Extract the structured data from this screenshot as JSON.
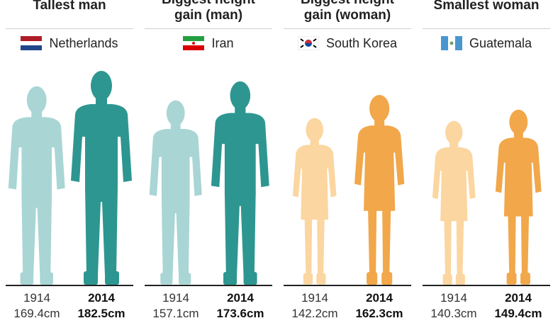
{
  "chart_data": {
    "type": "pictogram",
    "colors": {
      "man_1914": "#a9d5d5",
      "man_2014": "#2e9690",
      "woman_1914": "#fbd6a0",
      "woman_2014": "#f1a74a"
    },
    "panels": [
      {
        "title_lines": [
          "Tallest man"
        ],
        "country": "Netherlands",
        "flag": "netherlands-flag",
        "figure": "man",
        "values": [
          {
            "year": "1914",
            "height": "169.4cm",
            "value": 169.4
          },
          {
            "year": "2014",
            "height": "182.5cm",
            "value": 182.5
          }
        ]
      },
      {
        "title_lines": [
          "Biggest height",
          "gain (man)"
        ],
        "country": "Iran",
        "flag": "iran-flag",
        "figure": "man",
        "values": [
          {
            "year": "1914",
            "height": "157.1cm",
            "value": 157.1
          },
          {
            "year": "2014",
            "height": "173.6cm",
            "value": 173.6
          }
        ]
      },
      {
        "title_lines": [
          "Biggest height",
          "gain (woman)"
        ],
        "country": "South Korea",
        "flag": "south-korea-flag",
        "figure": "woman",
        "values": [
          {
            "year": "1914",
            "height": "142.2cm",
            "value": 142.2
          },
          {
            "year": "2014",
            "height": "162.3cm",
            "value": 162.3
          }
        ]
      },
      {
        "title_lines": [
          "Smallest woman"
        ],
        "country": "Guatemala",
        "flag": "guatemala-flag",
        "figure": "woman",
        "values": [
          {
            "year": "1914",
            "height": "140.3cm",
            "value": 140.3
          },
          {
            "year": "2014",
            "height": "149.4cm",
            "value": 149.4
          }
        ]
      }
    ]
  }
}
